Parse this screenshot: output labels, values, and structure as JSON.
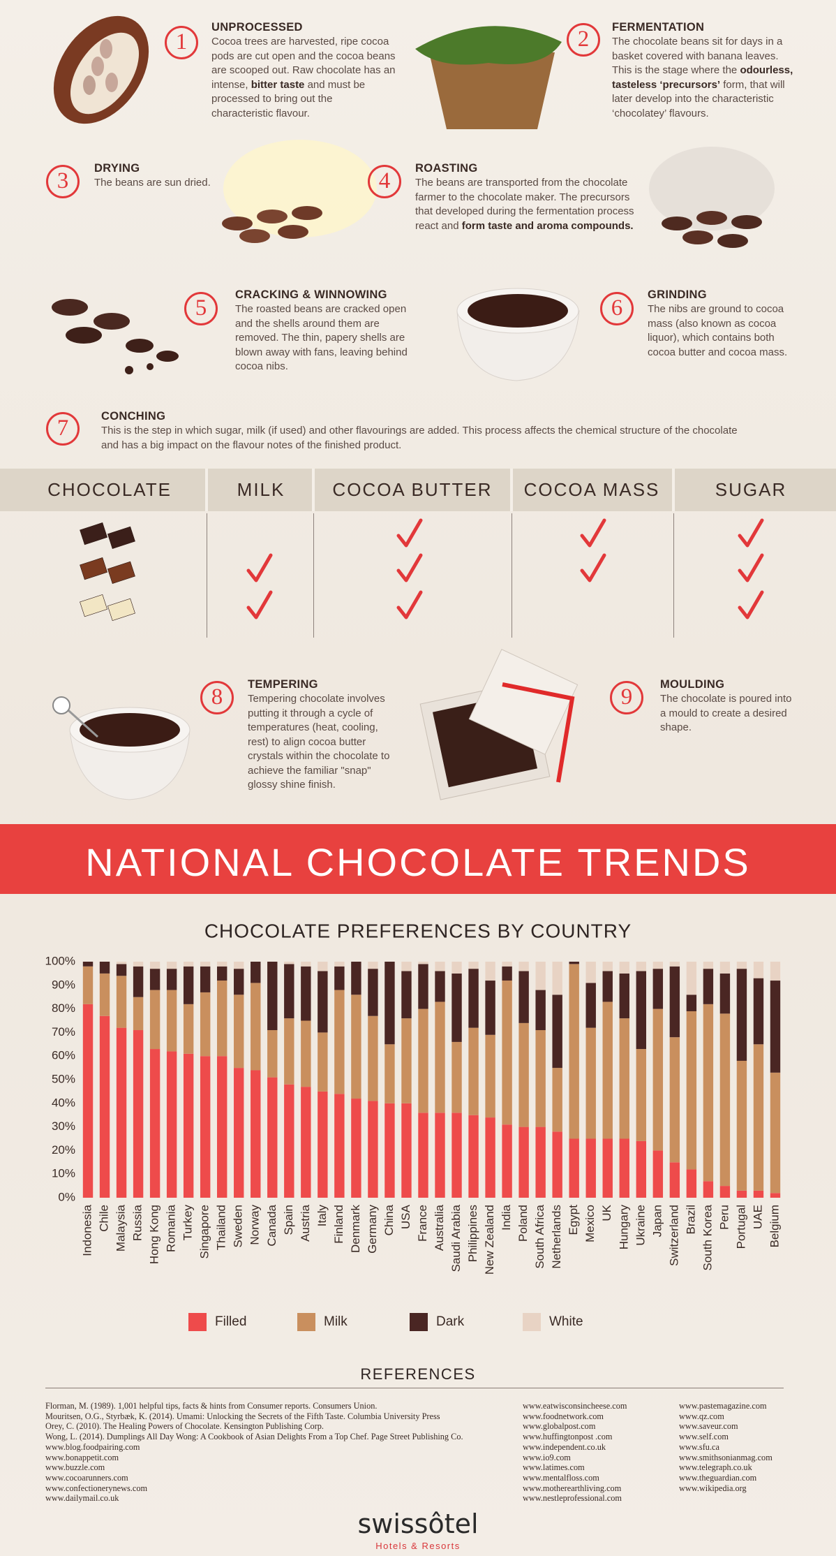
{
  "steps": [
    {
      "number": "1",
      "title": "UNPROCESSED",
      "body": [
        {
          "text": "Cocoa trees are harvested, ripe cocoa pods are cut open and the cocoa beans are scooped out. Raw chocolate has an intense, "
        },
        {
          "text": "bitter taste",
          "bold": true
        },
        {
          "text": " and must be processed to bring out the characteristic flavour."
        }
      ]
    },
    {
      "number": "2",
      "title": "FERMENTATION",
      "body": [
        {
          "text": "The chocolate beans sit for days in a basket covered with banana leaves. This is the stage where the "
        },
        {
          "text": "odourless, tasteless ‘precursors’",
          "bold": true
        },
        {
          "text": " form, that will later develop into the characteristic ‘chocolatey’ flavours."
        }
      ]
    },
    {
      "number": "3",
      "title": "DRYING",
      "body": [
        {
          "text": "The beans are sun dried."
        }
      ]
    },
    {
      "number": "4",
      "title": "ROASTING",
      "body": [
        {
          "text": "The beans are transported from the chocolate farmer to the chocolate maker. The precursors that developed during the fermentation process react and "
        },
        {
          "text": "form taste and aroma compounds.",
          "bold": true
        }
      ]
    },
    {
      "number": "5",
      "title": "CRACKING & WINNOWING",
      "body": [
        {
          "text": "The roasted beans are cracked open and the shells around them are removed. The thin, papery shells are blown away with fans, leaving behind cocoa nibs."
        }
      ]
    },
    {
      "number": "6",
      "title": "GRINDING",
      "body": [
        {
          "text": "The nibs are ground to cocoa mass (also known as cocoa liquor), which contains both cocoa butter and cocoa mass."
        }
      ]
    },
    {
      "number": "7",
      "title": "CONCHING",
      "body": [
        {
          "text": "This is the step in which sugar, milk (if used) and other flavourings are added. This process affects the chemical structure of the chocolate and has a big impact on the flavour notes of the finished product."
        }
      ]
    },
    {
      "number": "8",
      "title": "TEMPERING",
      "body": [
        {
          "text": "Tempering chocolate involves putting it through a cycle of temperatures (heat, cooling, rest) to align cocoa butter crystals within the chocolate to achieve the familiar \"snap\" glossy shine finish."
        }
      ]
    },
    {
      "number": "9",
      "title": "MOULDING",
      "body": [
        {
          "text": "The chocolate is poured into a mould to create a desired shape."
        }
      ]
    }
  ],
  "table": {
    "columns": [
      "CHOCOLATE",
      "MILK",
      "COCOA BUTTER",
      "COCOA MASS",
      "SUGAR"
    ],
    "rows": [
      {
        "color": "#3b1f1a",
        "checks": [
          false,
          true,
          true,
          true
        ]
      },
      {
        "color": "#7a3b20",
        "checks": [
          true,
          true,
          true,
          true
        ]
      },
      {
        "color": "#f2e6c4",
        "checks": [
          true,
          true,
          false,
          true
        ]
      }
    ],
    "check_color": "#e2383a"
  },
  "banner": {
    "title": "NATIONAL CHOCOLATE TRENDS"
  },
  "chart_data": {
    "type": "stacked_bar",
    "title": "CHOCOLATE PREFERENCES BY COUNTRY",
    "categories": [
      "Indonesia",
      "Chile",
      "Malaysia",
      "Russia",
      "Hong Kong",
      "Romania",
      "Turkey",
      "Singapore",
      "Thailand",
      "Sweden",
      "Norway",
      "Canada",
      "Spain",
      "Austria",
      "Italy",
      "Finland",
      "Denmark",
      "Germany",
      "China",
      "USA",
      "France",
      "Australia",
      "Saudi Arabia",
      "Philippines",
      "New Zealand",
      "India",
      "Poland",
      "South Africa",
      "Netherlands",
      "Egypt",
      "Mexico",
      "UK",
      "Hungary",
      "Ukraine",
      "Japan",
      "Switzerland",
      "Brazil",
      "South Korea",
      "Peru",
      "Portugal",
      "UAE",
      "Belgium"
    ],
    "series": [
      {
        "name": "Filled",
        "color": "#ee4b4b",
        "values": [
          82,
          77,
          72,
          71,
          63,
          62,
          61,
          60,
          60,
          55,
          54,
          51,
          48,
          47,
          45,
          44,
          42,
          41,
          40,
          40,
          36,
          36,
          36,
          35,
          34,
          31,
          30,
          30,
          28,
          25,
          25,
          25,
          25,
          24,
          20,
          15,
          12,
          7,
          5,
          3,
          3,
          2
        ]
      },
      {
        "name": "Milk",
        "color": "#c98f5e",
        "values": [
          16,
          18,
          22,
          14,
          25,
          26,
          21,
          27,
          32,
          31,
          37,
          20,
          28,
          28,
          25,
          44,
          44,
          36,
          25,
          36,
          44,
          47,
          30,
          37,
          35,
          61,
          44,
          41,
          27,
          74,
          47,
          58,
          51,
          39,
          60,
          53,
          67,
          75,
          73,
          55,
          62,
          51
        ]
      },
      {
        "name": "Dark",
        "color": "#4a2623",
        "values": [
          2,
          5,
          5,
          13,
          9,
          9,
          16,
          11,
          6,
          11,
          9,
          29,
          23,
          23,
          26,
          10,
          14,
          20,
          35,
          20,
          19,
          13,
          29,
          25,
          23,
          6,
          22,
          17,
          31,
          1,
          19,
          13,
          19,
          33,
          17,
          30,
          7,
          15,
          17,
          39,
          28,
          39
        ]
      },
      {
        "name": "White",
        "color": "#e8d3c4",
        "values": [
          0,
          0,
          1,
          2,
          3,
          3,
          2,
          2,
          2,
          3,
          0,
          0,
          1,
          2,
          4,
          2,
          0,
          3,
          0,
          4,
          1,
          4,
          5,
          3,
          8,
          2,
          4,
          12,
          14,
          0,
          9,
          4,
          5,
          4,
          3,
          2,
          14,
          3,
          5,
          3,
          7,
          8
        ]
      }
    ],
    "ylim": [
      0,
      100
    ],
    "yticks": [
      {
        "value": 0,
        "label": "0%"
      },
      {
        "value": 10,
        "label": "10%"
      },
      {
        "value": 20,
        "label": "20%"
      },
      {
        "value": 30,
        "label": "30%"
      },
      {
        "value": 40,
        "label": "40%"
      },
      {
        "value": 50,
        "label": "50%"
      },
      {
        "value": 60,
        "label": "60%"
      },
      {
        "value": 70,
        "label": "70%"
      },
      {
        "value": 80,
        "label": "80%"
      },
      {
        "value": 90,
        "label": "90%"
      },
      {
        "value": 100,
        "label": "100%"
      }
    ],
    "grid": false,
    "legend": "bottom"
  },
  "references": {
    "title": "REFERENCES",
    "columns": [
      [
        "Florman, M. (1989). 1,001 helpful tips, facts & hints from Consumer reports. Consumers Union.",
        "Mouritsen, O.G., Styrbæk, K. (2014). Umami: Unlocking the Secrets of the Fifth Taste. Columbia University Press",
        "Orey, C. (2010). The Healing Powers of Chocolate. Kensington Publishing Corp.",
        "Wong, L. (2014). Dumplings All Day Wong: A Cookbook of Asian Delights From a Top Chef. Page Street Publishing Co.",
        "www.blog.foodpairing.com",
        "www.bonappetit.com",
        "www.buzzle.com",
        "www.cocoarunners.com",
        "www.confectionerynews.com",
        "www.dailymail.co.uk"
      ],
      [
        "www.eatwisconsincheese.com",
        "www.foodnetwork.com",
        "www.globalpost.com",
        "www.huffingtonpost .com",
        "www.independent.co.uk",
        "www.io9.com",
        "www.latimes.com",
        "www.mentalfloss.com",
        "www.motherearthliving.com",
        "www.nestleprofessional.com"
      ],
      [
        "www.pastemagazine.com",
        "www.qz.com",
        "www.saveur.com",
        "www.self.com",
        "www.sfu.ca",
        "www.smithsonianmag.com",
        "www.telegraph.co.uk",
        "www.theguardian.com",
        "www.wikipedia.org"
      ]
    ]
  },
  "logo": {
    "name": "swissôtel",
    "tagline": "Hotels & Resorts"
  }
}
